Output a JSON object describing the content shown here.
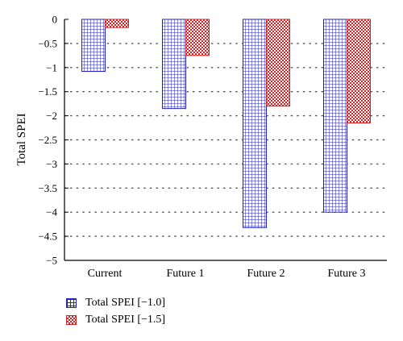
{
  "chart_data": {
    "type": "bar",
    "title": "",
    "xlabel": "",
    "ylabel": "Total SPEI",
    "categories": [
      "Current",
      "Future 1",
      "Future 2",
      "Future 3"
    ],
    "series": [
      {
        "name": "Total SPEI [−1.0]",
        "values": [
          -1.08,
          -1.85,
          -4.32,
          -4.0
        ],
        "color": "#2424b8",
        "pattern": "grid"
      },
      {
        "name": "Total SPEI [−1.5]",
        "values": [
          -0.17,
          -0.75,
          -1.8,
          -2.15
        ],
        "color": "#d42020",
        "pattern": "checker"
      }
    ],
    "ylim": [
      -5,
      0
    ],
    "yticks": [
      0,
      -0.5,
      -1,
      -1.5,
      -2,
      -2.5,
      -3,
      -3.5,
      -4,
      -4.5,
      -5
    ],
    "ytick_labels": [
      "0",
      "−0.5",
      "−1",
      "−1.5",
      "−2",
      "−2.5",
      "−3",
      "−3.5",
      "−4",
      "−4.5",
      "−5"
    ],
    "grid": "horizontal-dotted",
    "legend": "bottom-left"
  }
}
